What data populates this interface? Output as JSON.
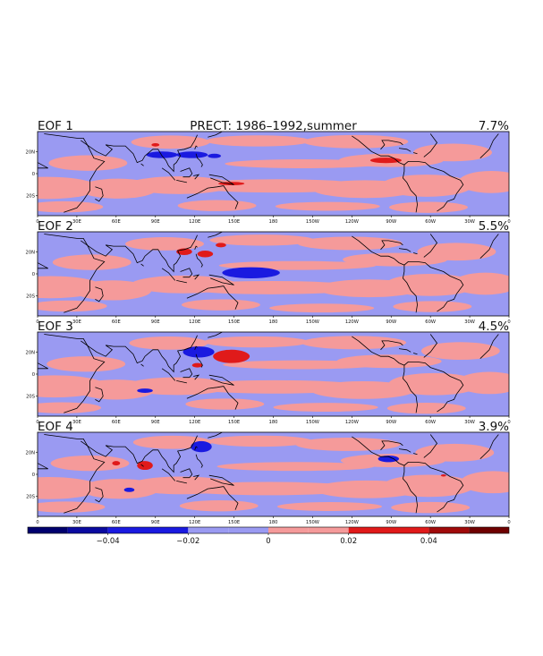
{
  "figure": {
    "title": "PRECT: 1986–1992,summer"
  },
  "palette": {
    "ocean_background": "#9a9af2",
    "positive_light": "#f59a9a",
    "negative_light": "#9a9af2",
    "negative_mid": "#1a1ae0",
    "negative_strong": "#0a0aa0",
    "positive_mid": "#e01a1a",
    "positive_strong": "#a00a0a",
    "coastline": "#000000"
  },
  "panels": [
    {
      "label": "EOF 1",
      "variance": "7.7%"
    },
    {
      "label": "EOF 2",
      "variance": "5.5%"
    },
    {
      "label": "EOF 3",
      "variance": "4.5%"
    },
    {
      "label": "EOF 4",
      "variance": "3.9%"
    }
  ],
  "axes": {
    "x_ticks": [
      "0",
      "30E",
      "60E",
      "90E",
      "120E",
      "150E",
      "180",
      "150W",
      "120W",
      "90W",
      "60W",
      "30W",
      "0"
    ],
    "y_ticks": [
      "20N",
      "0",
      "20S"
    ]
  },
  "colorbar": {
    "ticks": [
      "−0.04",
      "−0.02",
      "0",
      "0.02",
      "0.04"
    ],
    "levels": [
      -0.06,
      -0.05,
      -0.04,
      -0.03,
      -0.02,
      -0.01,
      0,
      0.01,
      0.02,
      0.03,
      0.04,
      0.05,
      0.06
    ],
    "colors": [
      "#00006e",
      "#0a0aa0",
      "#1a1ae0",
      "#1a1ae0",
      "#9a9af2",
      "#9a9af2",
      "#f59a9a",
      "#f59a9a",
      "#e01a1a",
      "#e01a1a",
      "#a00a0a",
      "#6e0000"
    ]
  }
}
